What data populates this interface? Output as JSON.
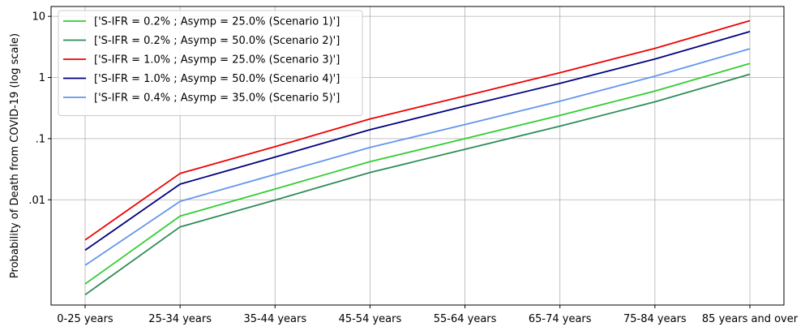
{
  "chart_data": {
    "type": "line",
    "categories": [
      "0-25 years",
      "25-34 years",
      "35-44 years",
      "45-54 years",
      "55-64 years",
      "65-74 years",
      "75-84 years",
      "85 years and over"
    ],
    "ylabel": "Probability of Death from COVID-19 (log scale)",
    "xlabel": "",
    "yscale": "log",
    "ylim": [
      0.00019,
      14.5
    ],
    "yticks": [
      {
        "value": 0.01,
        "label": ".01"
      },
      {
        "value": 0.1,
        "label": ".1"
      },
      {
        "value": 1,
        "label": "1"
      },
      {
        "value": 10,
        "label": "10"
      }
    ],
    "grid": true,
    "legend_position": "top-left",
    "series": [
      {
        "name": "['S-IFR = 0.2% ; Asymp = 25.0% (Scenario 1)']",
        "color": "#32cd32",
        "values": [
          0.00042,
          0.0054,
          0.015,
          0.042,
          0.1,
          0.24,
          0.6,
          1.7
        ]
      },
      {
        "name": "['S-IFR = 0.2% ; Asymp = 50.0% (Scenario 2)']",
        "color": "#2e8b57",
        "values": [
          0.00028,
          0.0036,
          0.0099,
          0.028,
          0.067,
          0.16,
          0.4,
          1.13
        ]
      },
      {
        "name": "['S-IFR = 1.0% ; Asymp = 25.0% (Scenario 3)']",
        "color": "#ee0000",
        "values": [
          0.0022,
          0.027,
          0.074,
          0.21,
          0.5,
          1.2,
          3.0,
          8.5
        ]
      },
      {
        "name": "['S-IFR = 1.0% ; Asymp = 50.0% (Scenario 4)']",
        "color": "#000080",
        "values": [
          0.0015,
          0.018,
          0.05,
          0.14,
          0.34,
          0.8,
          2.0,
          5.65
        ]
      },
      {
        "name": "['S-IFR = 0.4% ; Asymp = 35.0% (Scenario 5)']",
        "color": "#6495ed",
        "values": [
          0.00085,
          0.0094,
          0.026,
          0.072,
          0.17,
          0.41,
          1.05,
          2.95
        ]
      }
    ]
  }
}
